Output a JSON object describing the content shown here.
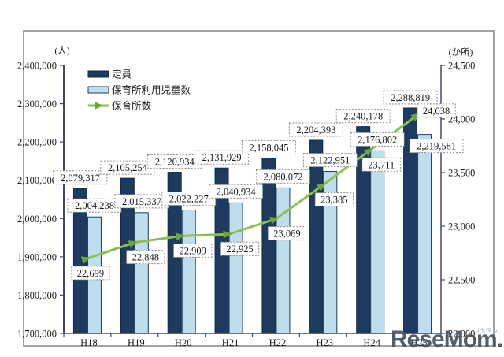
{
  "watermark": {
    "text": "ReseMom.",
    "furigana": "リセマム"
  },
  "chart_data": {
    "type": "bar",
    "categories": [
      "H18",
      "H19",
      "H20",
      "H21",
      "H22",
      "H23",
      "H24",
      "H25"
    ],
    "series": [
      {
        "name": "定員",
        "type": "bar",
        "axis": "left",
        "color": "#1d3a5f",
        "border_color": "#142c49",
        "values": [
          2079317,
          2105254,
          2120934,
          2131929,
          2158045,
          2204393,
          2240178,
          2288819
        ],
        "labels": [
          "2,079,317",
          "2,105,254",
          "2,120,934",
          "2,131,929",
          "2,158,045",
          "2,204,393",
          "2,240,178",
          "2,288,819"
        ]
      },
      {
        "name": "保育所利用児童数",
        "type": "bar",
        "axis": "left",
        "color": "#bedded",
        "border_color": "#1d3a5f",
        "values": [
          2004238,
          2015337,
          2022227,
          2040934,
          2080072,
          2122951,
          2176802,
          2219581
        ],
        "labels": [
          "2,004,238",
          "2,015,337",
          "2,022,227",
          "2,040,934",
          "2,080,072",
          "2,122,951",
          "2,176,802",
          "2,219,581"
        ]
      },
      {
        "name": "保育所数",
        "type": "line",
        "axis": "right",
        "color": "#8cbf4f",
        "marker_color": "#6aa53c",
        "values": [
          22699,
          22848,
          22909,
          22925,
          23069,
          23385,
          23711,
          24038
        ],
        "labels": [
          "22,699",
          "22,848",
          "22,909",
          "22,925",
          "23,069",
          "23,385",
          "23,711",
          "24,038"
        ]
      }
    ],
    "left_axis": {
      "unit": "(人)",
      "min": 1700000,
      "max": 2400000,
      "step": 100000,
      "tick_labels": [
        "1,700,000",
        "1,800,000",
        "1,900,000",
        "2,000,000",
        "2,100,000",
        "2,200,000",
        "2,300,000",
        "2,400,000"
      ]
    },
    "right_axis": {
      "unit": "(か所)",
      "min": 22000,
      "max": 24500,
      "step": 500,
      "tick_labels": [
        "22,000",
        "22,500",
        "23,000",
        "23,500",
        "24,000",
        "24,500"
      ]
    },
    "legend": {
      "position": "top-left-inside",
      "entries": [
        "定員",
        "保育所利用児童数",
        "保育所数"
      ]
    },
    "grid": false,
    "label_box_style": "white box, dotted gray border"
  }
}
